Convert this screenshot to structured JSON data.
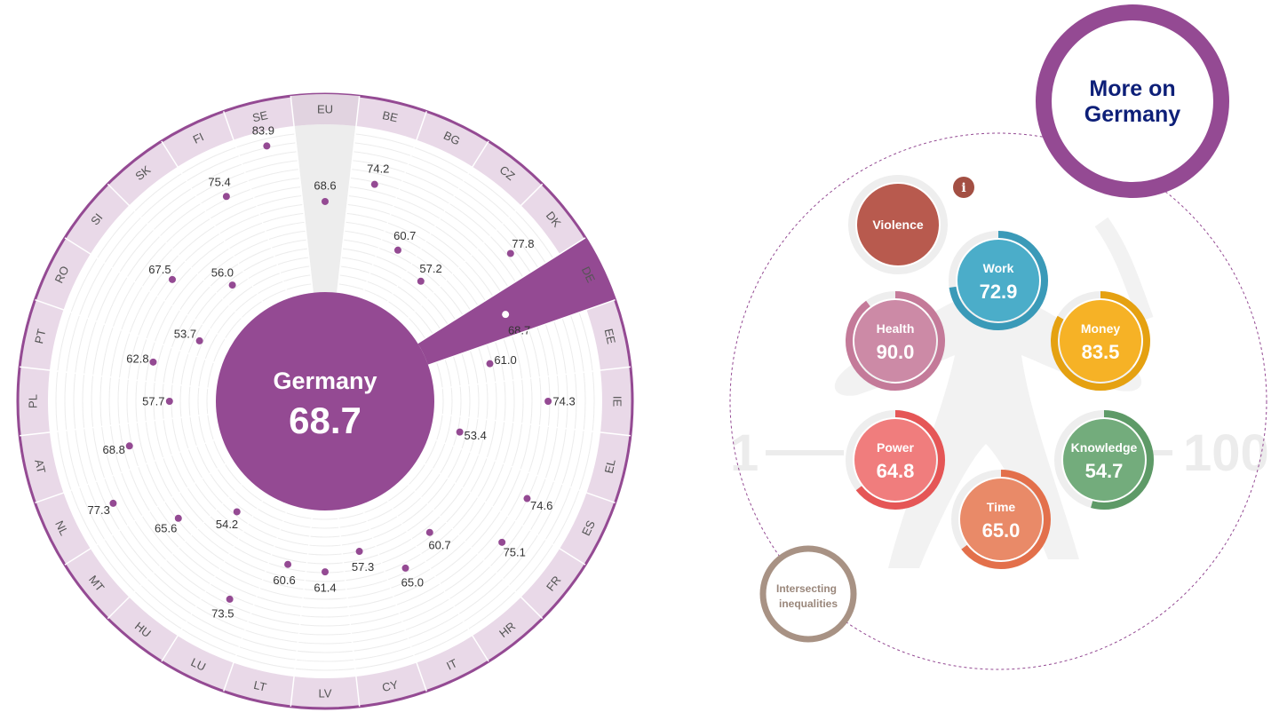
{
  "chart_data": {
    "type": "radial-dot",
    "scale": [
      1,
      100
    ],
    "selected_country": "DE",
    "highlight_reference": "EU",
    "center": {
      "name": "Germany",
      "score": "68.7"
    },
    "countries": [
      {
        "code": "EU",
        "value": 68.6
      },
      {
        "code": "BE",
        "value": 74.2
      },
      {
        "code": "BG",
        "value": 60.7
      },
      {
        "code": "CZ",
        "value": 57.2
      },
      {
        "code": "DK",
        "value": 77.8
      },
      {
        "code": "DE",
        "value": 68.7
      },
      {
        "code": "EE",
        "value": 61.0
      },
      {
        "code": "IE",
        "value": 74.3
      },
      {
        "code": "EL",
        "value": 53.4
      },
      {
        "code": "ES",
        "value": 74.6
      },
      {
        "code": "FR",
        "value": 75.1
      },
      {
        "code": "HR",
        "value": 60.7
      },
      {
        "code": "IT",
        "value": 65.0
      },
      {
        "code": "CY",
        "value": 57.3
      },
      {
        "code": "LV",
        "value": 61.4
      },
      {
        "code": "LT",
        "value": 60.6
      },
      {
        "code": "LU",
        "value": 73.5
      },
      {
        "code": "HU",
        "value": 54.2
      },
      {
        "code": "MT",
        "value": 65.6
      },
      {
        "code": "NL",
        "value": 77.3
      },
      {
        "code": "AT",
        "value": 68.8
      },
      {
        "code": "PL",
        "value": 57.7
      },
      {
        "code": "PT",
        "value": 62.8
      },
      {
        "code": "RO",
        "value": 53.7
      },
      {
        "code": "SI",
        "value": 67.5
      },
      {
        "code": "SK",
        "value": 56.0
      },
      {
        "code": "FI",
        "value": 75.4
      },
      {
        "code": "SE",
        "value": 83.9
      }
    ]
  },
  "domains_panel": {
    "more_on": "More on",
    "country": "Germany",
    "info_icon": "i",
    "scale_min": "1",
    "scale_max": "100",
    "intersecting_line1": "Intersecting",
    "intersecting_line2": "inequalities",
    "domains": [
      {
        "name": "Violence",
        "score": "",
        "value": null,
        "color": "#b85a4e",
        "ring": "#b85a4e"
      },
      {
        "name": "Work",
        "score": "72.9",
        "value": 72.9,
        "color": "#4badc9",
        "ring": "#3a9ab8"
      },
      {
        "name": "Money",
        "score": "83.5",
        "value": 83.5,
        "color": "#f6b226",
        "ring": "#e5a111"
      },
      {
        "name": "Knowledge",
        "score": "54.7",
        "value": 54.7,
        "color": "#73ac7c",
        "ring": "#5e9a67"
      },
      {
        "name": "Time",
        "score": "65.0",
        "value": 65.0,
        "color": "#e98a68",
        "ring": "#e3704b"
      },
      {
        "name": "Power",
        "score": "64.8",
        "value": 64.8,
        "color": "#f07d7d",
        "ring": "#e55656"
      },
      {
        "name": "Health",
        "score": "90.0",
        "value": 90.0,
        "color": "#cc8aa6",
        "ring": "#c47a99"
      }
    ],
    "colors": {
      "accent": "#944a93",
      "more_text": "#0d1f78",
      "intersect_ring": "#a89284"
    }
  }
}
